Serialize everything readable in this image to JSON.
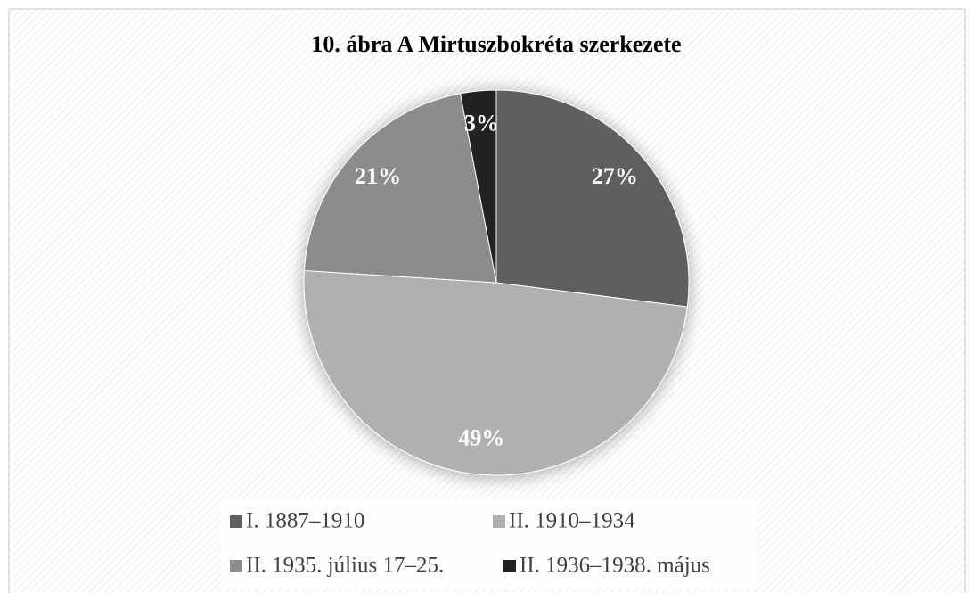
{
  "chart_data": {
    "type": "pie",
    "title": "10. ábra A Mirtuszbokréta szerkezete",
    "categories": [
      "I. 1887–1910",
      "II. 1910–1934",
      "II. 1935. július 17–25.",
      "II. 1936–1938. május"
    ],
    "values": [
      27,
      49,
      21,
      3
    ],
    "value_labels": [
      "27%",
      "49%",
      "21%",
      "3%"
    ],
    "colors": [
      "#5f5f5f",
      "#b0b0b0",
      "#8c8c8c",
      "#222222"
    ],
    "legend": "bottom"
  }
}
